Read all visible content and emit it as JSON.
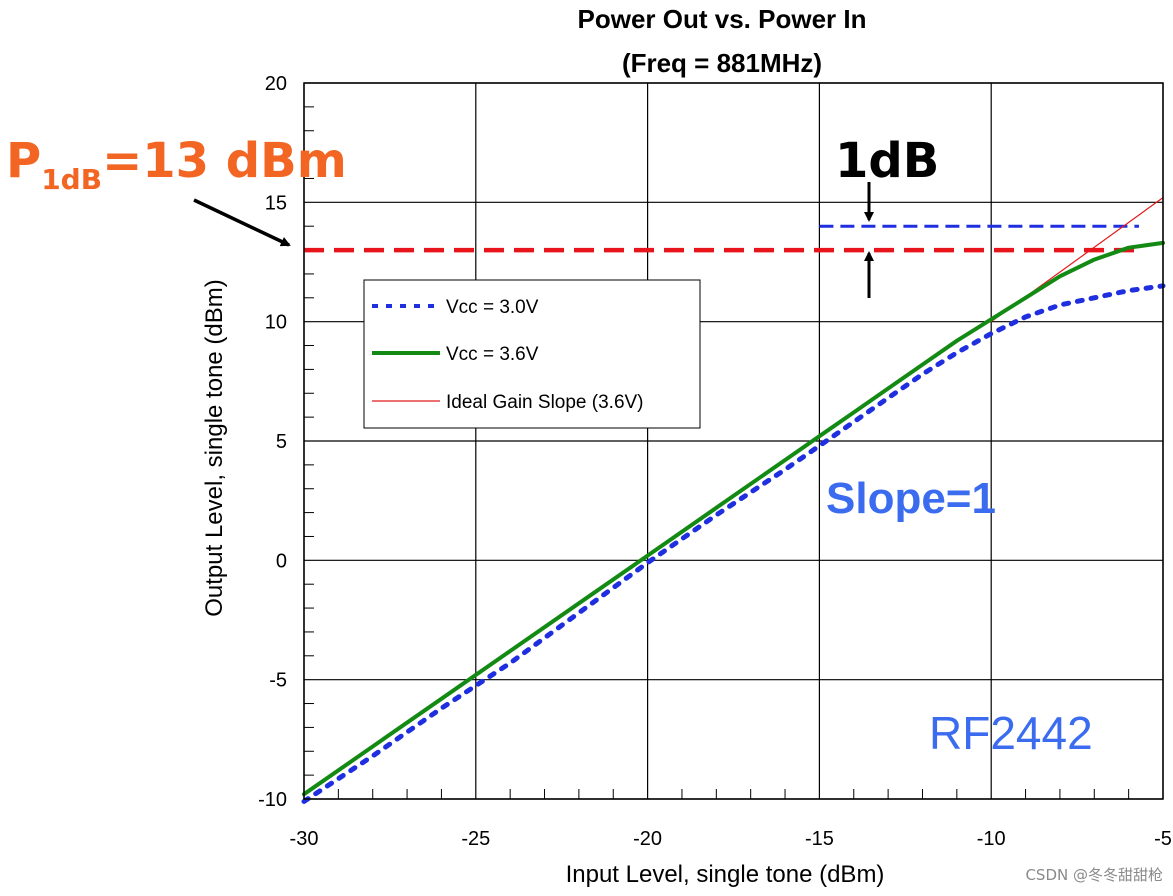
{
  "chart_data": {
    "type": "line",
    "title": "Power Out vs. Power In",
    "subtitle": "(Freq = 881MHz)",
    "xlabel": "Input Level, single tone (dBm)",
    "ylabel": "Output Level, single tone (dBm)",
    "xlim": [
      -30,
      -5
    ],
    "ylim": [
      -10,
      20
    ],
    "xticks": [
      -30,
      -25,
      -20,
      -15,
      -10,
      -5
    ],
    "xtick_labels": [
      "-30",
      "-25",
      "-20",
      "-15",
      "-10",
      "-5"
    ],
    "yticks": [
      -10,
      -5,
      0,
      5,
      10,
      15,
      20
    ],
    "ytick_labels": [
      "-10",
      "-5",
      "0",
      "5",
      "10",
      "15",
      "20"
    ],
    "grid": true,
    "legend_position": "upper-left-inside",
    "series": [
      {
        "name": "Vcc = 3.0V",
        "style": "dotted",
        "color": "#1F2FE0",
        "x": [
          -30,
          -28,
          -26,
          -24,
          -22,
          -20,
          -18,
          -16,
          -15,
          -14,
          -13,
          -12,
          -11,
          -10,
          -9,
          -8,
          -7,
          -6,
          -5
        ],
        "y": [
          -10.1,
          -8.2,
          -6.2,
          -4.3,
          -2.2,
          -0.1,
          1.9,
          3.8,
          4.8,
          5.8,
          6.8,
          7.8,
          8.7,
          9.5,
          10.2,
          10.7,
          11.0,
          11.3,
          11.5
        ]
      },
      {
        "name": "Vcc = 3.6V",
        "style": "solid",
        "color": "#138A13",
        "x": [
          -30,
          -28,
          -26,
          -24,
          -22,
          -20,
          -18,
          -16,
          -15,
          -14,
          -13,
          -12,
          -11,
          -10,
          -9,
          -8,
          -7,
          -6,
          -5
        ],
        "y": [
          -9.8,
          -7.8,
          -5.8,
          -3.8,
          -1.8,
          0.2,
          2.2,
          4.2,
          5.2,
          6.2,
          7.2,
          8.2,
          9.2,
          10.1,
          11.0,
          11.9,
          12.6,
          13.1,
          13.3
        ]
      },
      {
        "name": "Ideal Gain Slope (3.6V)",
        "style": "thin",
        "color": "#E21B1B",
        "x": [
          -10,
          -5
        ],
        "y": [
          10.0,
          15.2
        ]
      }
    ],
    "reference_lines": {
      "p1db_level": 13,
      "p1db_xrange": [
        -30,
        -5.7
      ],
      "upper_level": 14,
      "upper_xrange": [
        -15,
        -5.7
      ]
    },
    "annotations": {
      "p1db_main": "P",
      "p1db_sub": "1dB",
      "p1db_value": "=13 dBm",
      "one_db": "1dB",
      "slope": "Slope=1",
      "part": "RF2442"
    }
  },
  "watermark": "CSDN @冬冬甜甜枪",
  "colors": {
    "p1db_line": "#E8141B",
    "upper_line": "#1F2FE0",
    "grid": "#000000"
  }
}
